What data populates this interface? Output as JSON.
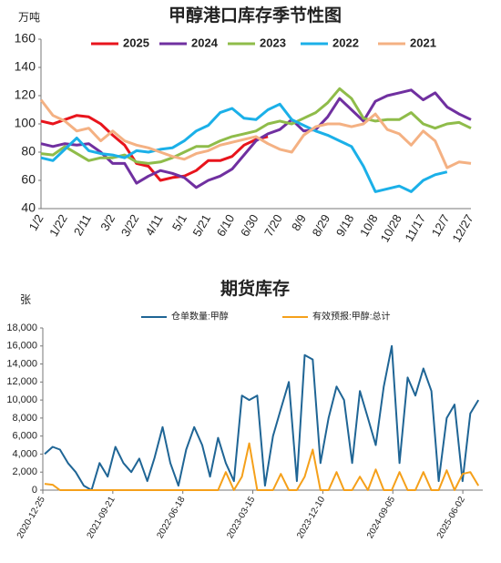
{
  "chart_data": [
    {
      "type": "line",
      "title": "甲醇港口库存季节性图",
      "y_label": "万吨",
      "grid": false,
      "legend": "top",
      "categories": [
        "1/2",
        null,
        "1/22",
        null,
        "2/11",
        null,
        "3/2",
        null,
        "3/22",
        null,
        "4/11",
        null,
        "5/1",
        null,
        "5/21",
        null,
        "6/10",
        null,
        "6/30",
        null,
        "7/20",
        null,
        "8/9",
        null,
        "8/29",
        null,
        "9/18",
        null,
        "10/8",
        null,
        "10/28",
        null,
        "11/17",
        null,
        "12/7",
        null,
        "12/27"
      ],
      "ylim": [
        40,
        160
      ],
      "yticks": [
        40,
        60,
        80,
        100,
        120,
        140,
        160
      ],
      "series": [
        {
          "name": "2025",
          "color": "#e8141c",
          "values": [
            102,
            100,
            103,
            106,
            105,
            100,
            92,
            85,
            72,
            70,
            60,
            62,
            63,
            67,
            74,
            74,
            77,
            85,
            89,
            91,
            null,
            null,
            null,
            null,
            null,
            null,
            null,
            null,
            null,
            null,
            null,
            null,
            null,
            null,
            null,
            null,
            null
          ]
        },
        {
          "name": "2024",
          "color": "#7030a0",
          "values": [
            86,
            84,
            86,
            85,
            86,
            80,
            72,
            72,
            58,
            63,
            67,
            65,
            62,
            55,
            60,
            63,
            68,
            78,
            88,
            93,
            96,
            103,
            95,
            96,
            105,
            118,
            110,
            102,
            116,
            120,
            122,
            124,
            117,
            122,
            112,
            107,
            103
          ]
        },
        {
          "name": "2023",
          "color": "#8fbc4a",
          "values": [
            79,
            78,
            84,
            79,
            74,
            76,
            76,
            78,
            73,
            72,
            73,
            76,
            80,
            84,
            84,
            88,
            91,
            93,
            95,
            100,
            102,
            100,
            104,
            108,
            115,
            125,
            118,
            104,
            102,
            103,
            103,
            108,
            100,
            97,
            100,
            101,
            97
          ]
        },
        {
          "name": "2022",
          "color": "#1bb0e8",
          "values": [
            76,
            74,
            82,
            90,
            81,
            79,
            78,
            76,
            81,
            80,
            82,
            83,
            88,
            95,
            99,
            108,
            111,
            104,
            103,
            110,
            114,
            103,
            99,
            95,
            92,
            88,
            84,
            70,
            52,
            54,
            56,
            52,
            60,
            64,
            66,
            null,
            null
          ]
        },
        {
          "name": "2021",
          "color": "#f4b183",
          "values": [
            117,
            106,
            102,
            95,
            97,
            88,
            95,
            88,
            85,
            83,
            80,
            77,
            75,
            79,
            81,
            85,
            87,
            89,
            91,
            86,
            82,
            80,
            92,
            98,
            100,
            100,
            98,
            100,
            107,
            96,
            93,
            85,
            95,
            88,
            69,
            73,
            72
          ]
        }
      ]
    },
    {
      "type": "line",
      "title": "期货库存",
      "y_label": "张",
      "grid": false,
      "legend": "top",
      "x": [
        "2021-01-01",
        "2021-02-01",
        "2021-03-01",
        "2021-04-01",
        "2021-05-01",
        "2021-06-01",
        "2021-07-01",
        "2021-08-01",
        "2021-09-01",
        "2021-10-01",
        "2021-11-01",
        "2021-12-01",
        "2022-01-01",
        "2022-02-01",
        "2022-03-01",
        "2022-04-01",
        "2022-05-01",
        "2022-06-01",
        "2022-07-01",
        "2022-08-01",
        "2022-09-01",
        "2022-10-01",
        "2022-11-01",
        "2022-12-01",
        "2023-01-01",
        "2023-02-01",
        "2023-03-01",
        "2023-04-01",
        "2023-05-01",
        "2023-06-01",
        "2023-07-01",
        "2023-08-01",
        "2023-09-01",
        "2023-10-01",
        "2023-11-01",
        "2023-12-01",
        "2024-01-01",
        "2024-02-01",
        "2024-03-01",
        "2024-04-01",
        "2024-05-01",
        "2024-06-01",
        "2024-07-01",
        "2024-08-01",
        "2024-09-01",
        "2024-10-01",
        "2024-11-01",
        "2024-12-01",
        "2025-01-01",
        "2025-02-01",
        "2025-03-01",
        "2025-04-01",
        "2025-05-01",
        "2025-06-01",
        "2025-07-01",
        "2025-08-01"
      ],
      "xlim": [
        "2020-12-25",
        "2025-08-18"
      ],
      "xticks": [
        "2020-12-25",
        "2021-09-21",
        "2022-06-18",
        "2023-03-15",
        "2023-12-10",
        "2024-09-05",
        "2025-06-02"
      ],
      "ylim": [
        0,
        18000
      ],
      "yticks": [
        0,
        {
          "value": 2000,
          "label": "2,000"
        },
        {
          "value": 4000,
          "label": "4,000"
        },
        {
          "value": 6000,
          "label": "6,000"
        },
        {
          "value": 8000,
          "label": "8,000"
        },
        {
          "value": 10000,
          "label": "10,000"
        },
        {
          "value": 12000,
          "label": "12,000"
        },
        {
          "value": 14000,
          "label": "14,000"
        },
        {
          "value": 16000,
          "label": "16,000"
        },
        {
          "value": 18000,
          "label": "18,000"
        }
      ],
      "series": [
        {
          "name": "仓单数量:甲醇",
          "color": "#1f6595",
          "values": [
            4000,
            4800,
            4500,
            3000,
            2000,
            500,
            0,
            3000,
            1500,
            4800,
            3000,
            2000,
            3500,
            1000,
            3600,
            7000,
            3000,
            500,
            4500,
            7000,
            5000,
            1500,
            5800,
            3000,
            1000,
            10500,
            10000,
            10500,
            500,
            6000,
            9000,
            12000,
            1000,
            15000,
            14500,
            3000,
            8000,
            11500,
            10000,
            3000,
            11000,
            8000,
            5000,
            11500,
            16000,
            3000,
            12500,
            10500,
            13500,
            11000,
            1000,
            8000,
            9500,
            1000,
            8500,
            10000
          ]
        },
        {
          "name": "有效预报:甲醇:总计",
          "color": "#f5a01a",
          "values": [
            700,
            600,
            0,
            0,
            0,
            0,
            0,
            0,
            0,
            0,
            0,
            0,
            0,
            0,
            0,
            0,
            0,
            0,
            0,
            0,
            0,
            0,
            0,
            2000,
            0,
            1500,
            5200,
            0,
            0,
            0,
            1800,
            0,
            0,
            1500,
            4500,
            0,
            0,
            2000,
            0,
            0,
            1500,
            0,
            2300,
            0,
            0,
            2000,
            0,
            0,
            2000,
            0,
            0,
            2200,
            0,
            1800,
            2000,
            500
          ]
        }
      ]
    }
  ]
}
